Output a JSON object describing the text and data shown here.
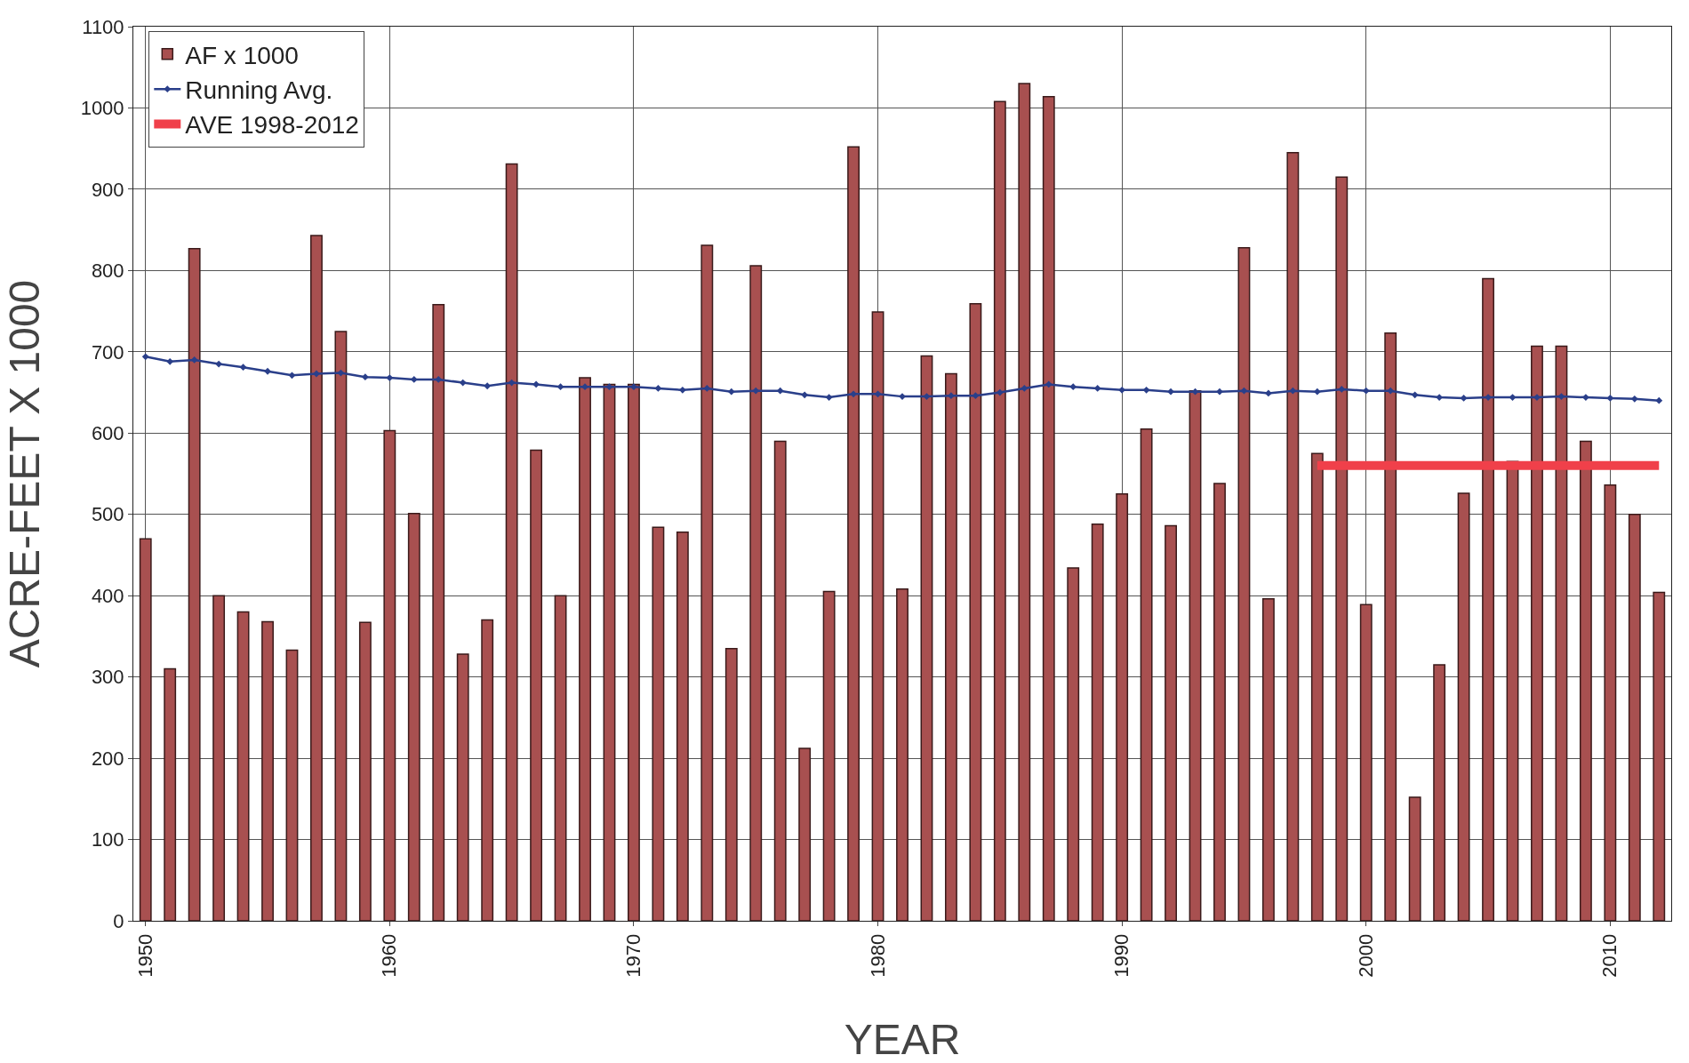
{
  "chart_data": {
    "type": "bar",
    "xlabel": "YEAR",
    "ylabel": "ACRE-FEET X 1000",
    "xlim": [
      1949.5,
      2012.5
    ],
    "xticks": [
      1950,
      1960,
      1970,
      1980,
      1990,
      2000,
      2010
    ],
    "ylim": [
      0,
      1100
    ],
    "yticks": [
      0,
      100,
      200,
      300,
      400,
      500,
      600,
      700,
      800,
      900,
      1000,
      1100
    ],
    "grid": true,
    "legend": "top left",
    "series": [
      {
        "name": "AF x 1000",
        "color": "#a85050",
        "x": [
          1950,
          1951,
          1952,
          1953,
          1954,
          1955,
          1956,
          1957,
          1958,
          1959,
          1960,
          1961,
          1962,
          1963,
          1964,
          1965,
          1966,
          1967,
          1968,
          1969,
          1970,
          1971,
          1972,
          1973,
          1974,
          1975,
          1976,
          1977,
          1978,
          1979,
          1980,
          1981,
          1982,
          1983,
          1984,
          1985,
          1986,
          1987,
          1988,
          1989,
          1990,
          1991,
          1992,
          1993,
          1994,
          1995,
          1996,
          1997,
          1998,
          1999,
          2000,
          2001,
          2002,
          2003,
          2004,
          2005,
          2006,
          2007,
          2008,
          2009,
          2010,
          2011,
          2012
        ],
        "values": [
          470,
          310,
          827,
          400,
          380,
          368,
          333,
          843,
          725,
          367,
          603,
          501,
          758,
          328,
          370,
          931,
          579,
          400,
          668,
          660,
          660,
          484,
          478,
          831,
          335,
          806,
          590,
          212,
          405,
          952,
          749,
          408,
          695,
          673,
          759,
          1008,
          1030,
          1014,
          434,
          488,
          525,
          605,
          486,
          652,
          538,
          828,
          396,
          945,
          575,
          915,
          389,
          723,
          152,
          315,
          526,
          790,
          565,
          707,
          707,
          590,
          536,
          500,
          404
        ]
      },
      {
        "name": "Running Avg.",
        "type": "line",
        "color": "#2a3f8a",
        "marker": "diamond",
        "x": [
          1950,
          1951,
          1952,
          1953,
          1954,
          1955,
          1956,
          1957,
          1958,
          1959,
          1960,
          1961,
          1962,
          1963,
          1964,
          1965,
          1966,
          1967,
          1968,
          1969,
          1970,
          1971,
          1972,
          1973,
          1974,
          1975,
          1976,
          1977,
          1978,
          1979,
          1980,
          1981,
          1982,
          1983,
          1984,
          1985,
          1986,
          1987,
          1988,
          1989,
          1990,
          1991,
          1992,
          1993,
          1994,
          1995,
          1996,
          1997,
          1998,
          1999,
          2000,
          2001,
          2002,
          2003,
          2004,
          2005,
          2006,
          2007,
          2008,
          2009,
          2010,
          2011,
          2012
        ],
        "values": [
          694,
          688,
          690,
          685,
          681,
          676,
          671,
          673,
          674,
          669,
          668,
          666,
          666,
          662,
          658,
          662,
          660,
          657,
          657,
          657,
          657,
          655,
          653,
          655,
          651,
          652,
          652,
          647,
          644,
          648,
          648,
          645,
          645,
          646,
          646,
          650,
          655,
          660,
          657,
          655,
          653,
          653,
          651,
          651,
          651,
          652,
          649,
          652,
          651,
          654,
          652,
          652,
          647,
          644,
          643,
          644,
          644,
          644,
          645,
          644,
          643,
          642,
          640
        ]
      },
      {
        "name": "AVE 1998-2012",
        "type": "line",
        "color": "#f0404a",
        "marker": "none",
        "x": [
          1998,
          2012
        ],
        "values": [
          560,
          560
        ]
      }
    ]
  }
}
